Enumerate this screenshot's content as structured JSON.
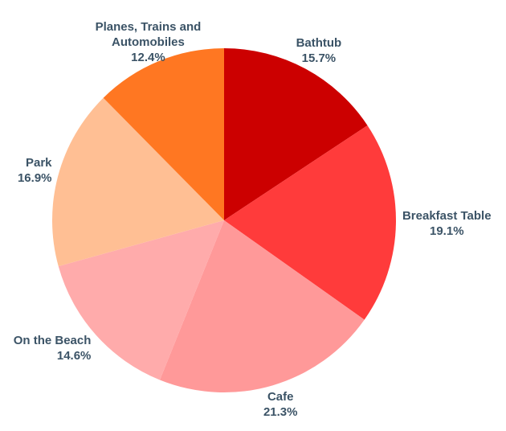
{
  "chart_data": {
    "type": "pie",
    "categories": [
      "Bathtub",
      "Breakfast Table",
      "Cafe",
      "On the Beach",
      "Park",
      "Planes, Trains and Automobiles"
    ],
    "values": [
      15.7,
      19.1,
      21.3,
      14.6,
      16.9,
      12.4
    ],
    "value_labels": [
      "15.7%",
      "19.1%",
      "21.3%",
      "14.6%",
      "16.9%",
      "12.4%"
    ],
    "colors": [
      "#cc0000",
      "#ff3b3b",
      "#ff9999",
      "#ffabab",
      "#ffbf94",
      "#ff7722"
    ]
  }
}
